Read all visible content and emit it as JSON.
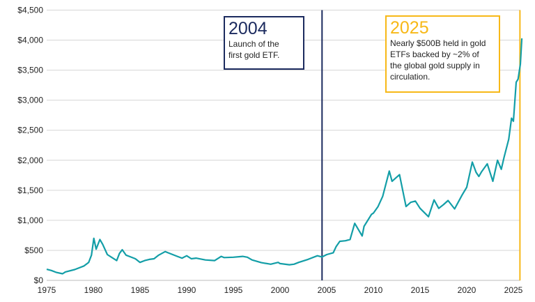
{
  "chart_data": {
    "type": "line",
    "title": "",
    "xlabel": "",
    "ylabel": "",
    "xlim": [
      1975,
      2025.9
    ],
    "ylim": [
      0,
      4500
    ],
    "grid": true,
    "x_ticks": [
      "1975",
      "1980",
      "1985",
      "1990",
      "1995",
      "2000",
      "2005",
      "2010",
      "2015",
      "2020",
      "2025"
    ],
    "y_ticks": [
      "$0",
      "$500",
      "$1,000",
      "$1,500",
      "$2,000",
      "$2,500",
      "$3,000",
      "$3,500",
      "$4,000",
      "$4,500"
    ],
    "colors": {
      "line": "#139ea7",
      "marker_2004": "#1b2a5e",
      "marker_2025": "#f7b817",
      "grid": "#d6d6d6"
    },
    "series": [
      {
        "x": [
          1975,
          1975.5,
          1976,
          1976.7,
          1977,
          1978,
          1979,
          1979.5,
          1979.8,
          1980.05,
          1980.3,
          1980.7,
          1981,
          1981.5,
          1982,
          1982.5,
          1982.8,
          1983.1,
          1983.5,
          1984,
          1984.5,
          1985,
          1985.5,
          1986,
          1986.5,
          1987,
          1987.7,
          1988,
          1988.5,
          1989,
          1989.5,
          1990,
          1990.5,
          1991,
          1992,
          1993,
          1993.7,
          1994,
          1995,
          1996,
          1996.5,
          1997,
          1998,
          1999,
          1999.8,
          2000,
          2001,
          2001.5,
          2002,
          2003,
          2004,
          2004.5,
          2005,
          2005.7,
          2006,
          2006.4,
          2007,
          2007.5,
          2008,
          2008.8,
          2009,
          2009.8,
          2010,
          2010.5,
          2011,
          2011.7,
          2012,
          2012.8,
          2013.3,
          2013.5,
          2014,
          2014.5,
          2015,
          2015.9,
          2016.5,
          2017,
          2017.5,
          2018,
          2018.7,
          2019.5,
          2020,
          2020.6,
          2021,
          2021.3,
          2021.6,
          2022.2,
          2022.8,
          2023.3,
          2023.7,
          2024,
          2024.5,
          2024.8,
          2025,
          2025.3,
          2025.5,
          2025.75,
          2025.9
        ],
        "y": [
          185,
          165,
          135,
          110,
          140,
          180,
          240,
          300,
          420,
          700,
          520,
          680,
          600,
          430,
          380,
          330,
          450,
          510,
          420,
          390,
          360,
          300,
          330,
          350,
          360,
          420,
          480,
          460,
          430,
          400,
          370,
          410,
          360,
          370,
          340,
          330,
          400,
          380,
          385,
          400,
          385,
          340,
          295,
          270,
          300,
          280,
          260,
          270,
          300,
          350,
          410,
          390,
          430,
          460,
          560,
          650,
          660,
          680,
          950,
          740,
          900,
          1100,
          1120,
          1230,
          1400,
          1820,
          1650,
          1760,
          1380,
          1230,
          1300,
          1320,
          1200,
          1060,
          1340,
          1200,
          1260,
          1330,
          1190,
          1420,
          1550,
          1970,
          1800,
          1730,
          1810,
          1940,
          1650,
          2000,
          1850,
          2050,
          2350,
          2700,
          2650,
          3300,
          3350,
          3600,
          4030
        ]
      }
    ],
    "annotations": [
      {
        "x": 2004.5,
        "year": "2004",
        "text_lines": [
          "Launch of the",
          "first gold ETF."
        ]
      },
      {
        "x": 2025.7,
        "year": "2025",
        "text_lines": [
          "Nearly $500B held in gold",
          "ETFs backed by ~2% of",
          "the global gold supply in",
          "circulation."
        ]
      }
    ]
  }
}
